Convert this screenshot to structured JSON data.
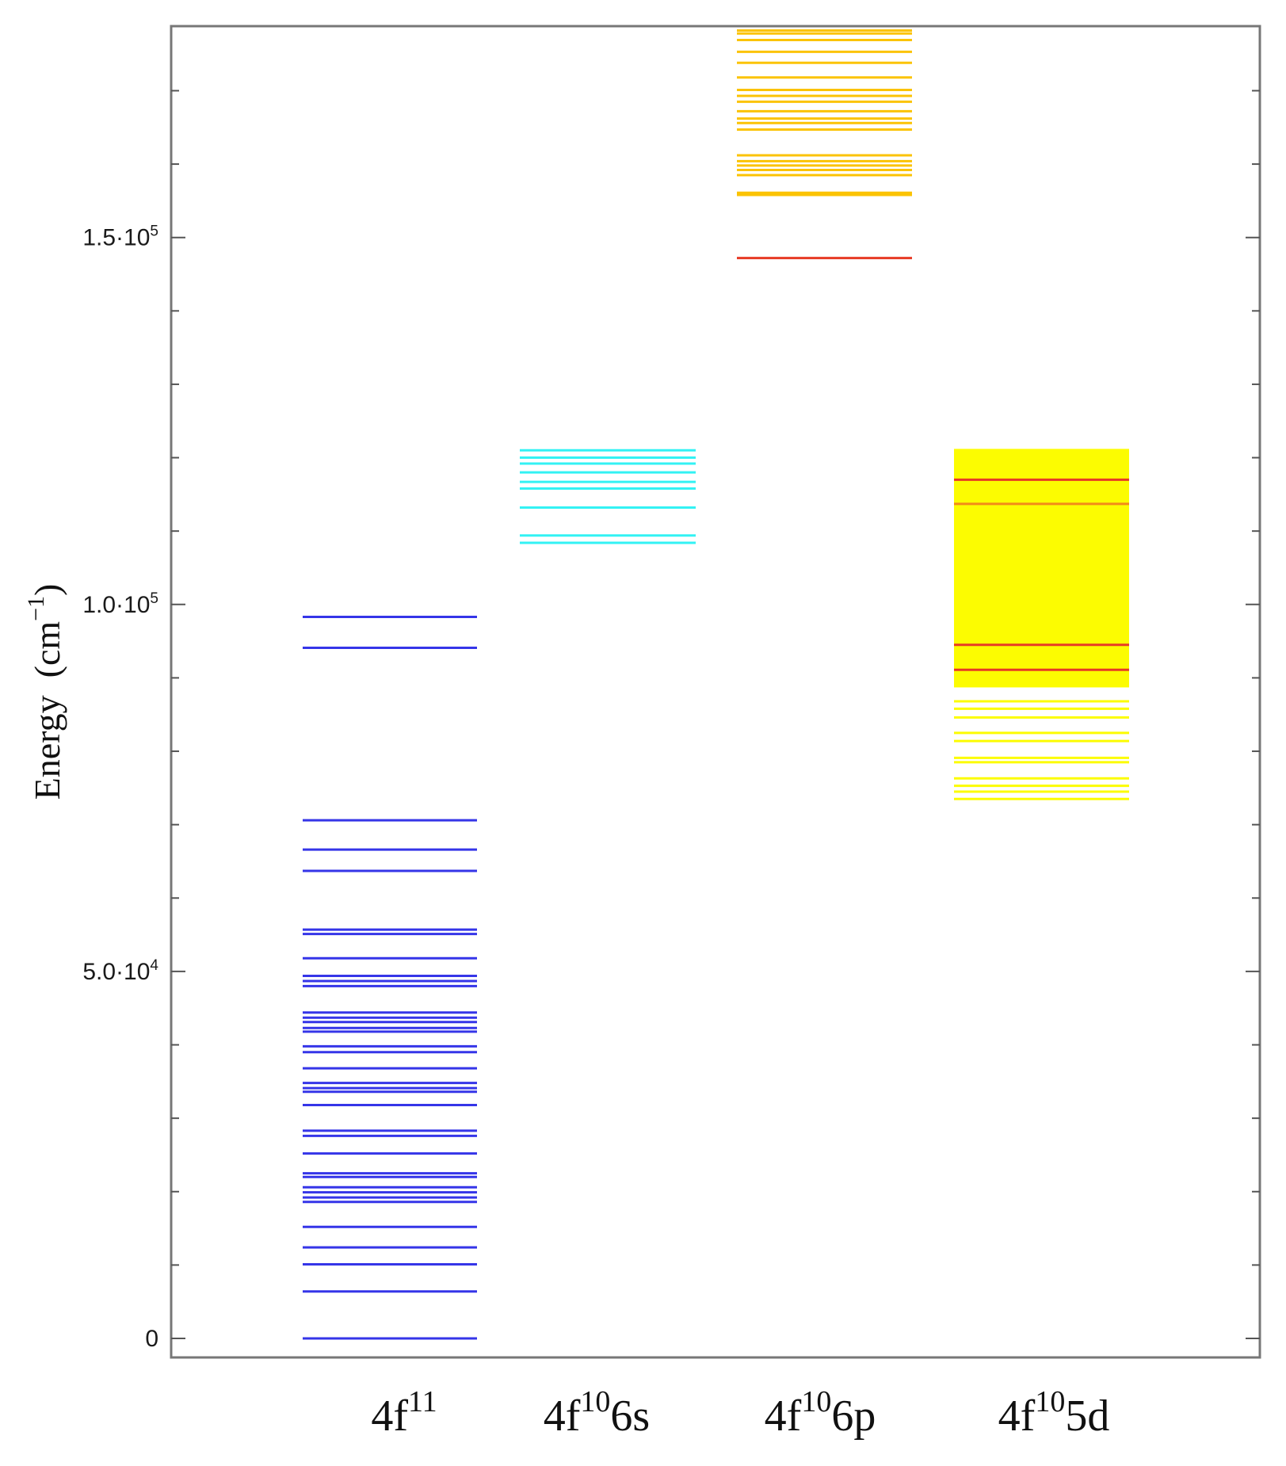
{
  "chart_data": {
    "type": "energy-level diagram",
    "ylabel": "Energy",
    "ylabel_unit": "(cm",
    "ylabel_unit_exp": "−1",
    "ylabel_unit_close": ")",
    "ylim": [
      -3000,
      178000
    ],
    "y_ticks": [
      {
        "value": 0,
        "mantissa": "0",
        "exp": ""
      },
      {
        "value": 50000,
        "mantissa": "5.0·10",
        "exp": "4"
      },
      {
        "value": 100000,
        "mantissa": "1.0·10",
        "exp": "5"
      },
      {
        "value": 150000,
        "mantissa": "1.5·10",
        "exp": "5"
      }
    ],
    "y_minor_step": 10000,
    "grid": false,
    "categories": [
      {
        "base": "4f",
        "sup": "11",
        "tail": ""
      },
      {
        "base": "4f",
        "sup": "10",
        "tail": "6s"
      },
      {
        "base": "4f",
        "sup": "10",
        "tail": "6p"
      },
      {
        "base": "4f",
        "sup": "10",
        "tail": "5d"
      }
    ],
    "series": [
      {
        "category_index": 0,
        "color": "#3535e8",
        "levels": [
          0,
          6400,
          10100,
          12400,
          15200,
          18600,
          19200,
          19900,
          20600,
          22000,
          22500,
          25200,
          27600,
          28300,
          31800,
          33600,
          34100,
          34800,
          36800,
          39000,
          39800,
          41800,
          42300,
          43100,
          43700,
          44400,
          48000,
          48700,
          49400,
          51800,
          55100,
          55700,
          63700,
          66600,
          70600,
          94100,
          98300
        ]
      },
      {
        "category_index": 1,
        "color": "#33f2f4",
        "levels": [
          108400,
          109400,
          113200,
          115800,
          116700,
          118000,
          119200,
          120000,
          121000
        ]
      },
      {
        "category_index": 2,
        "color": "#fbc304",
        "levels": [
          155800,
          156100,
          158500,
          159200,
          159800,
          160400,
          161200,
          164700,
          165600,
          166200,
          167200,
          168500,
          169300,
          170100,
          171800,
          173800,
          175300,
          176900,
          177800,
          178200
        ]
      },
      {
        "category_index": 2,
        "color": "#e73a25",
        "levels": [
          147200
        ]
      },
      {
        "category_index": 3,
        "color": "#fcfc01",
        "band": [
          88700,
          121200
        ],
        "levels": [
          73500,
          74500,
          75300,
          76300,
          78500,
          79100,
          81400,
          82500,
          84600,
          85800,
          86800
        ]
      },
      {
        "category_index": 3,
        "color": "#e73a25",
        "levels": [
          91100,
          94500,
          117000
        ]
      },
      {
        "category_index": 3,
        "color": "#f28a19",
        "levels": [
          113700
        ]
      }
    ]
  }
}
